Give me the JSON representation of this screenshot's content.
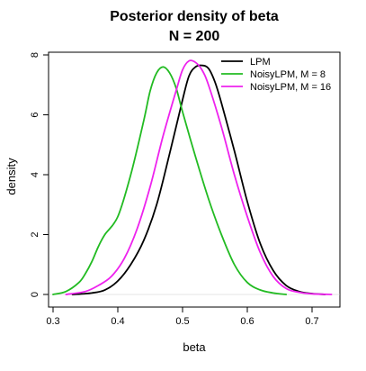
{
  "chart_data": {
    "type": "line",
    "title": "Posterior density of beta",
    "subtitle": "N = 200",
    "xlabel": "beta",
    "ylabel": "density",
    "xlim": [
      0.3,
      0.74
    ],
    "ylim": [
      0,
      8.1
    ],
    "x_ticks": [
      0.3,
      0.4,
      0.5,
      0.6,
      0.7
    ],
    "x_tick_labels": [
      "0.3",
      "0.4",
      "0.5",
      "0.6",
      "0.7"
    ],
    "y_ticks": [
      0,
      2,
      4,
      6,
      8
    ],
    "y_tick_labels": [
      "0",
      "2",
      "4",
      "6",
      "8"
    ],
    "grid": false,
    "legend_position": "top-right",
    "series": [
      {
        "name": "LPM",
        "color": "#000000",
        "x": [
          0.33,
          0.36,
          0.38,
          0.4,
          0.42,
          0.44,
          0.46,
          0.48,
          0.5,
          0.51,
          0.52,
          0.53,
          0.54,
          0.55,
          0.56,
          0.58,
          0.6,
          0.62,
          0.64,
          0.66,
          0.68,
          0.7,
          0.72
        ],
        "y": [
          0.0,
          0.05,
          0.15,
          0.45,
          1.0,
          1.8,
          3.0,
          4.7,
          6.5,
          7.3,
          7.6,
          7.65,
          7.55,
          7.1,
          6.4,
          4.8,
          3.1,
          1.7,
          0.8,
          0.3,
          0.1,
          0.03,
          0.0
        ]
      },
      {
        "name": "NoisyLPM, M = 8",
        "color": "#22bb22",
        "x": [
          0.3,
          0.32,
          0.34,
          0.35,
          0.36,
          0.37,
          0.38,
          0.4,
          0.42,
          0.44,
          0.45,
          0.46,
          0.47,
          0.48,
          0.49,
          0.5,
          0.52,
          0.54,
          0.56,
          0.58,
          0.6,
          0.62,
          0.64,
          0.66
        ],
        "y": [
          0.0,
          0.1,
          0.4,
          0.7,
          1.1,
          1.6,
          2.0,
          2.6,
          4.0,
          5.8,
          6.8,
          7.4,
          7.6,
          7.4,
          6.9,
          6.1,
          4.6,
          3.2,
          2.0,
          1.0,
          0.4,
          0.15,
          0.05,
          0.0
        ]
      },
      {
        "name": "NoisyLPM, M = 16",
        "color": "#ee22ee",
        "x": [
          0.32,
          0.35,
          0.37,
          0.39,
          0.41,
          0.43,
          0.45,
          0.47,
          0.49,
          0.5,
          0.51,
          0.52,
          0.53,
          0.54,
          0.56,
          0.58,
          0.6,
          0.62,
          0.64,
          0.66,
          0.68,
          0.7,
          0.73
        ],
        "y": [
          0.0,
          0.1,
          0.3,
          0.6,
          1.2,
          2.2,
          3.6,
          5.3,
          6.8,
          7.5,
          7.8,
          7.75,
          7.5,
          7.0,
          5.6,
          4.0,
          2.6,
          1.4,
          0.6,
          0.2,
          0.07,
          0.02,
          0.0
        ]
      }
    ]
  }
}
